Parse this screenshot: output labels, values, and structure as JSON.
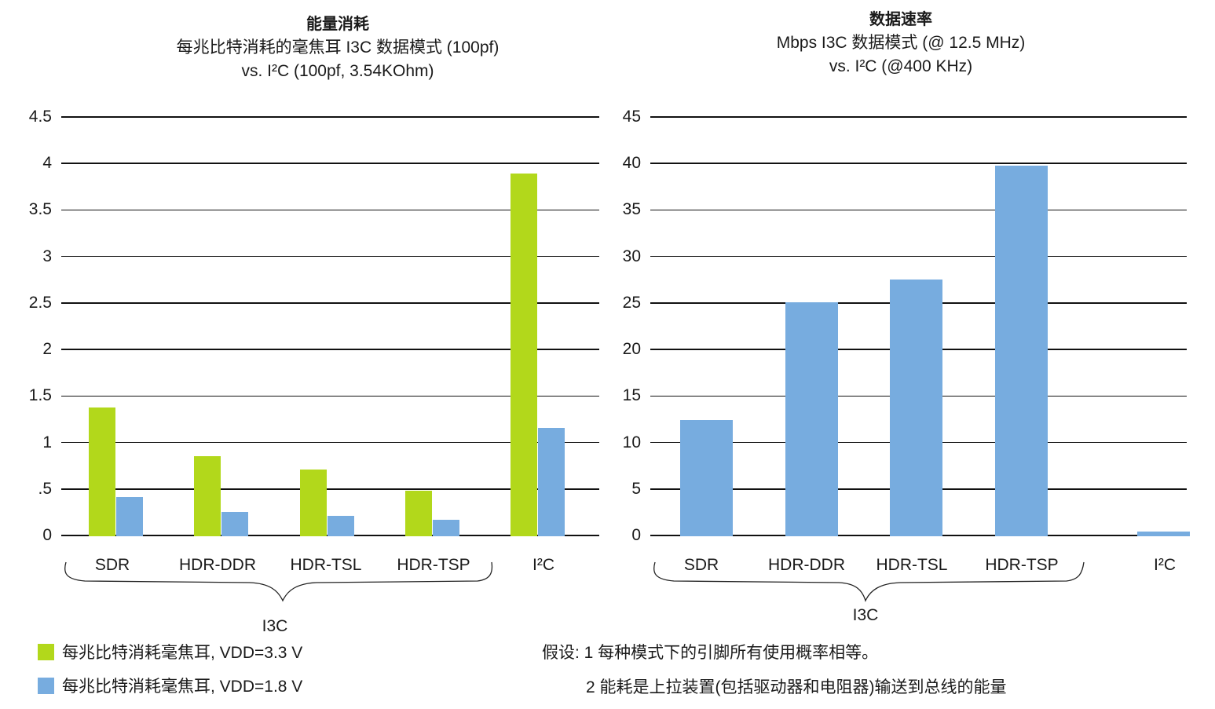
{
  "colors": {
    "vdd33": "#b2d81b",
    "vdd18": "#77acdf",
    "grid": "#111111"
  },
  "chart_data": [
    {
      "type": "bar",
      "title": "能量消耗",
      "subtitle": "每兆比特消耗的毫焦耳 I3C 数据模式 (100pf) vs. I²C (100pf, 3.54KOhm)",
      "subtitle_line1": "每兆比特消耗的毫焦耳 I3C 数据模式 (100pf)",
      "subtitle_line2": "vs. I²C (100pf, 3.54KOhm)",
      "xlabel": "",
      "ylabel": "",
      "ylim": [
        0,
        4.5
      ],
      "yticks": [
        "0",
        ".5",
        "1",
        "1.5",
        "2",
        "2.5",
        "3",
        "3.5",
        "4",
        "4.5"
      ],
      "grid": true,
      "categories": [
        "SDR",
        "HDR-DDR",
        "HDR-TSL",
        "HDR-TSP",
        "I²C"
      ],
      "group_label": "I3C",
      "group_members": [
        "SDR",
        "HDR-DDR",
        "HDR-TSL",
        "HDR-TSP"
      ],
      "series": [
        {
          "name": "每兆比特消耗毫焦耳, VDD=3.3 V",
          "color": "#b2d81b",
          "values": [
            1.38,
            0.85,
            0.71,
            0.48,
            3.89
          ]
        },
        {
          "name": "每兆比特消耗毫焦耳, VDD=1.8 V",
          "color": "#77acdf",
          "values": [
            0.41,
            0.25,
            0.21,
            0.17,
            1.16
          ]
        }
      ],
      "legend_position": "bottom-left"
    },
    {
      "type": "bar",
      "title": "数据速率",
      "subtitle": "Mbps I3C 数据模式 (@ 12.5 MHz) vs. I²C (@400 KHz)",
      "subtitle_line1": "Mbps I3C 数据模式 (@ 12.5 MHz)",
      "subtitle_line2": "vs. I²C (@400 KHz)",
      "xlabel": "",
      "ylabel": "",
      "ylim": [
        0,
        45
      ],
      "yticks": [
        "0",
        "5",
        "10",
        "15",
        "20",
        "25",
        "30",
        "35",
        "40",
        "45"
      ],
      "grid": true,
      "categories": [
        "SDR",
        "HDR-DDR",
        "HDR-TSL",
        "HDR-TSP",
        "I²C"
      ],
      "group_label": "I3C",
      "group_members": [
        "SDR",
        "HDR-DDR",
        "HDR-TSL",
        "HDR-TSP"
      ],
      "series": [
        {
          "name": "Mbps",
          "color": "#77acdf",
          "values": [
            12.4,
            25.1,
            27.5,
            39.8,
            0.4
          ]
        }
      ]
    }
  ],
  "legend": {
    "items": [
      {
        "label": "每兆比特消耗毫焦耳, VDD=3.3 V",
        "color": "#b2d81b"
      },
      {
        "label": "每兆比特消耗毫焦耳, VDD=1.8 V",
        "color": "#77acdf"
      }
    ]
  },
  "notes": {
    "line1": "假设: 1 每种模式下的引脚所有使用概率相等。",
    "line2": "2 能耗是上拉装置(包括驱动器和电阻器)输送到总线的能量"
  }
}
